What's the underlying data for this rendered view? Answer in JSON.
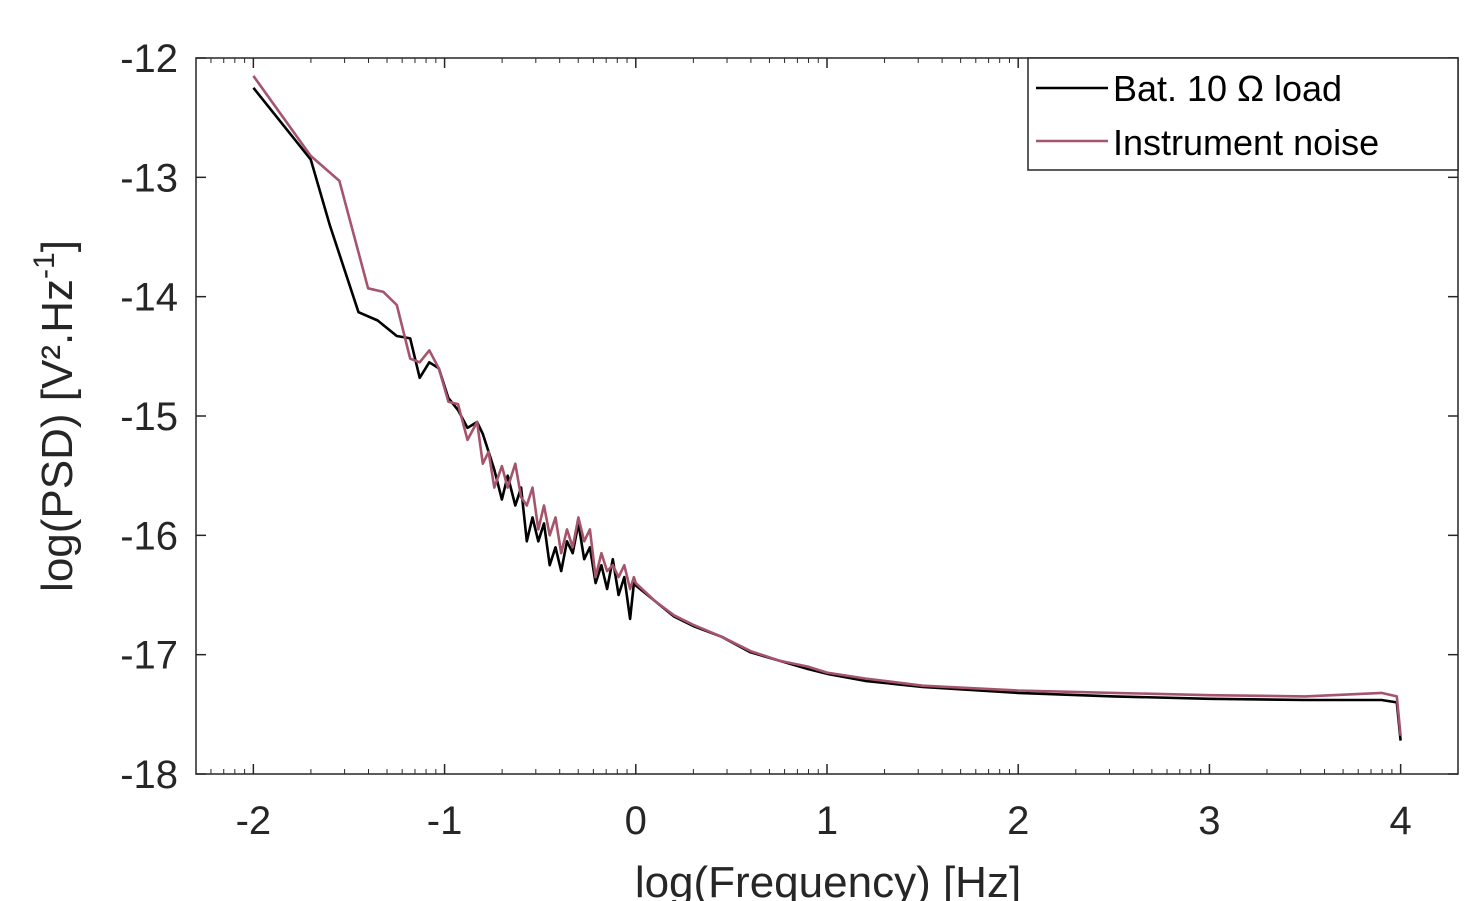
{
  "chart_data": {
    "type": "line",
    "xlabel": "log(Frequency) [Hz]",
    "ylabel": "log(PSD) [V².Hz",
    "ylabel_superscript": "-1",
    "ylabel_close": "]",
    "xlim": [
      -2.3,
      4.3
    ],
    "ylim": [
      -18,
      -12
    ],
    "xticks": [
      "-2",
      "-1",
      "0",
      "1",
      "2",
      "3",
      "4"
    ],
    "yticks": [
      "-12",
      "-13",
      "-14",
      "-15",
      "-16",
      "-17",
      "-18"
    ],
    "legend_position": "top-right",
    "series": [
      {
        "name": "Bat. 10 Ω load",
        "color": "#000000",
        "x": [
          -2,
          -1.7,
          -1.6,
          -1.45,
          -1.35,
          -1.25,
          -1.18,
          -1.13,
          -1.08,
          -1.03,
          -0.98,
          -0.93,
          -0.88,
          -0.83,
          -0.8,
          -0.77,
          -0.74,
          -0.7,
          -0.67,
          -0.63,
          -0.6,
          -0.57,
          -0.54,
          -0.51,
          -0.48,
          -0.45,
          -0.42,
          -0.39,
          -0.36,
          -0.33,
          -0.3,
          -0.27,
          -0.24,
          -0.21,
          -0.18,
          -0.15,
          -0.12,
          -0.09,
          -0.06,
          -0.03,
          -0.01,
          0,
          0.1,
          0.2,
          0.3,
          0.45,
          0.6,
          0.75,
          0.9,
          1,
          1.2,
          1.5,
          2,
          2.5,
          3,
          3.5,
          3.9,
          3.98,
          4
        ],
        "y": [
          -12.25,
          -12.85,
          -13.4,
          -14.13,
          -14.2,
          -14.33,
          -14.35,
          -14.68,
          -14.55,
          -14.6,
          -14.85,
          -14.95,
          -15.1,
          -15.05,
          -15.15,
          -15.3,
          -15.45,
          -15.7,
          -15.5,
          -15.75,
          -15.6,
          -16.05,
          -15.85,
          -16.05,
          -15.9,
          -16.25,
          -16.1,
          -16.3,
          -16.05,
          -16.15,
          -15.9,
          -16.2,
          -16.1,
          -16.4,
          -16.25,
          -16.45,
          -16.2,
          -16.5,
          -16.35,
          -16.7,
          -16.4,
          -16.42,
          -16.55,
          -16.68,
          -16.76,
          -16.85,
          -16.98,
          -17.05,
          -17.12,
          -17.16,
          -17.22,
          -17.27,
          -17.32,
          -17.35,
          -17.37,
          -17.38,
          -17.38,
          -17.4,
          -17.72
        ]
      },
      {
        "name": "Instrument noise",
        "color": "#a5546c",
        "x": [
          -2,
          -1.7,
          -1.55,
          -1.4,
          -1.32,
          -1.25,
          -1.18,
          -1.13,
          -1.08,
          -1.03,
          -0.98,
          -0.93,
          -0.88,
          -0.83,
          -0.8,
          -0.77,
          -0.74,
          -0.7,
          -0.67,
          -0.63,
          -0.6,
          -0.57,
          -0.54,
          -0.51,
          -0.48,
          -0.45,
          -0.42,
          -0.39,
          -0.36,
          -0.33,
          -0.3,
          -0.27,
          -0.24,
          -0.21,
          -0.18,
          -0.15,
          -0.12,
          -0.09,
          -0.06,
          -0.03,
          -0.01,
          0,
          0.1,
          0.2,
          0.3,
          0.45,
          0.6,
          0.75,
          0.9,
          1,
          1.2,
          1.5,
          2,
          2.5,
          3,
          3.5,
          3.9,
          3.98,
          4
        ],
        "y": [
          -12.15,
          -12.82,
          -13.03,
          -13.93,
          -13.96,
          -14.07,
          -14.52,
          -14.55,
          -14.45,
          -14.6,
          -14.88,
          -14.9,
          -15.2,
          -15.05,
          -15.4,
          -15.3,
          -15.6,
          -15.42,
          -15.6,
          -15.4,
          -15.68,
          -15.75,
          -15.6,
          -15.95,
          -15.75,
          -16.0,
          -15.85,
          -16.15,
          -15.95,
          -16.1,
          -15.85,
          -16.05,
          -15.95,
          -16.35,
          -16.15,
          -16.3,
          -16.25,
          -16.35,
          -16.25,
          -16.45,
          -16.35,
          -16.4,
          -16.55,
          -16.67,
          -16.75,
          -16.85,
          -16.97,
          -17.05,
          -17.1,
          -17.15,
          -17.2,
          -17.26,
          -17.3,
          -17.32,
          -17.34,
          -17.35,
          -17.32,
          -17.35,
          -17.68
        ]
      }
    ]
  }
}
